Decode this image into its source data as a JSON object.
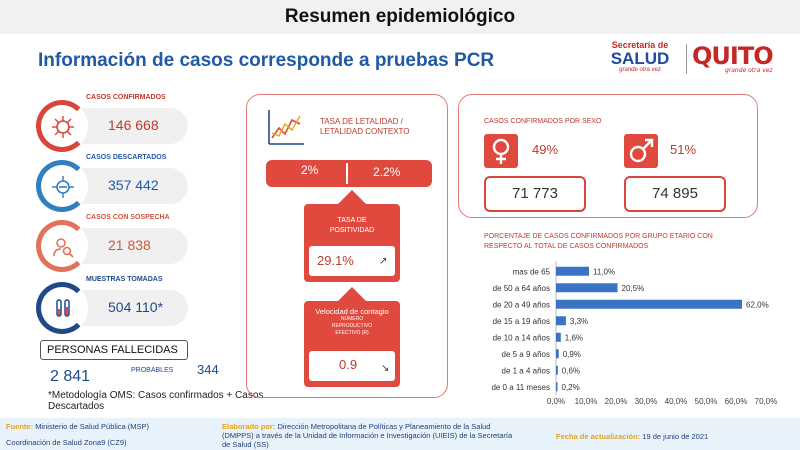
{
  "header": {
    "title": "Resumen epidemiológico"
  },
  "subtitle": "Información de casos corresponde a pruebas PCR",
  "logos": {
    "salud_small": "Secretaría de",
    "salud_big": "SALUD",
    "salud_tag": "grande otra vez",
    "quito": "QUITO",
    "quito_tag": "grande otra vez"
  },
  "stats": {
    "confirmados": {
      "label": "CASOS CONFIRMADOS",
      "value": "146 668",
      "icon": "virus-icon"
    },
    "descartados": {
      "label": "CASOS DESCARTADOS",
      "value": "357 442",
      "icon": "virus-icon"
    },
    "sospecha": {
      "label": "CASOS CON SOSPECHA",
      "value": "21 838",
      "icon": "person-search-icon"
    },
    "muestras": {
      "label": "MUESTRAS TOMADAS",
      "value": "504 110*",
      "icon": "test-tube-icon"
    }
  },
  "fallecidas": {
    "label": "PERSONAS FALLECIDAS",
    "value": "2 841",
    "probables_label": "PROBABLES",
    "probables_value": "344"
  },
  "nota": "*Metodología OMS: Casos confirmados + Casos Descartados",
  "letalidad": {
    "label_line1": "TASA DE LETALIDAD /",
    "label_line2": "LETALIDAD CONTEXTO",
    "tasa": "2%",
    "contexto": "2.2%"
  },
  "positividad": {
    "label_line1": "TASA DE",
    "label_line2": "POSITIVIDAD",
    "value": "29.1%",
    "arrow": "↗"
  },
  "contagio": {
    "label": "Velocidad de contagio",
    "sub1": "NÚMERO",
    "sub2": "REPRODUCTIVO",
    "sub3": "EFECTIVO (R)",
    "value": "0.9",
    "arrow": "↘"
  },
  "sexo": {
    "label": "CASOS CONFIRMADOS POR SEXO",
    "mujer": {
      "pct": "49%",
      "count": "71 773",
      "symbol": "♀"
    },
    "hombre": {
      "pct": "51%",
      "count": "74 895",
      "symbol": "♂"
    }
  },
  "edad": {
    "title_line1": "PORCENTAJE DE CASOS CONFIRMADOS POR GRUPO ETARIO CON",
    "title_line2": "RESPECTO AL TOTAL DE CASOS CONFIRMADOS"
  },
  "chart_data": {
    "type": "bar",
    "orientation": "horizontal",
    "categories": [
      "mas de 65",
      "de 50 a 64 años",
      "de 20 a 49 años",
      "de 15 a 19 años",
      "de 10 a 14 años",
      "de 5 a 9 años",
      "de 1 a 4 años",
      "de 0 a 11 meses"
    ],
    "values": [
      11.0,
      20.5,
      62.0,
      3.3,
      1.6,
      0.9,
      0.6,
      0.2
    ],
    "data_labels": [
      "11,0%",
      "20,5%",
      "62,0%",
      "3,3%",
      "1,6%",
      "0,9%",
      "0,6%",
      "0,2%"
    ],
    "xlim": [
      0,
      70
    ],
    "xticks": [
      "0,0%",
      "10,0%",
      "20,0%",
      "30,0%",
      "40,0%",
      "50,0%",
      "60,0%",
      "70,0%"
    ],
    "grid": false,
    "bar_color": "#3a73c4"
  },
  "footer": {
    "fuente_label": "Fuente:",
    "fuente": "Ministerio de Salud Pública (MSP)",
    "coordinacion": "Coordinación de Salud Zona9 (CZ9)",
    "elaborado_label": "Elaborado por:",
    "elaborado": "Dirección Metropolitana de Políticas y Planeamiento de la Salud (DMPPS) a través de la Unidad de Información e Investigación (UIEIS) de la Secretaría de Salud (SS)",
    "fecha_label": "Fecha de actualización:",
    "fecha": "19 de junio de 2021"
  },
  "colors": {
    "accent_red": "#e04a3e",
    "brand_blue": "#1f5aa6",
    "bar_blue": "#3a73c4"
  }
}
